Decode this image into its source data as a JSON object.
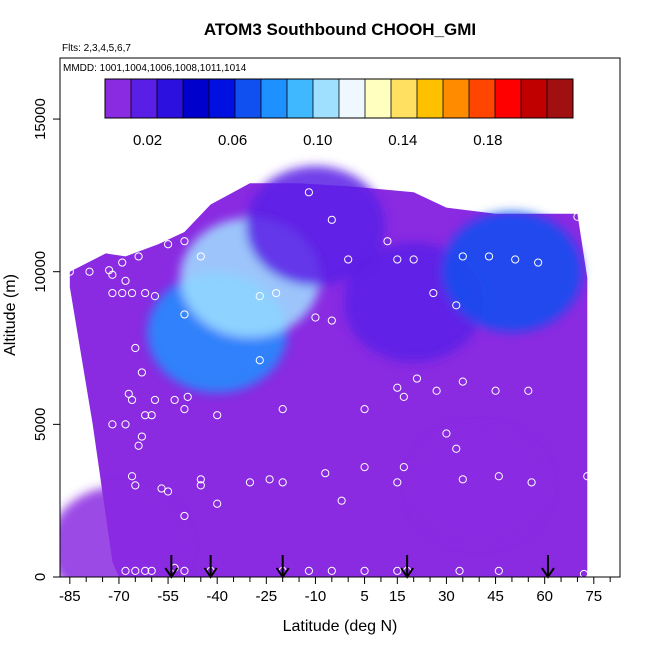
{
  "chart_data": {
    "type": "heatmap",
    "title": "ATOM3 Southbound CHOOH_GMI",
    "subtitle_flights": "Flts: 2,3,4,5,6,7",
    "subtitle_dates": "MMDD: 1001,1004,1006,1008,1011,1014",
    "xlabel": "Latitude (deg N)",
    "ylabel": "Altitude (m)",
    "xlim": [
      -88,
      83
    ],
    "ylim": [
      0,
      17000
    ],
    "x_ticks": [
      -85,
      -70,
      -55,
      -40,
      -25,
      -10,
      5,
      15,
      30,
      45,
      60,
      75
    ],
    "x_tick_labels": [
      "-85",
      "-70",
      "-55",
      "-40",
      "-25",
      "-10",
      "5",
      "15",
      "30",
      "45",
      "60",
      "75"
    ],
    "x_minor_ticks": [
      -80,
      -75,
      -65,
      -60,
      -50,
      -45,
      -35,
      -30,
      -20,
      -15,
      -5,
      0,
      10,
      20,
      25,
      35,
      40,
      50,
      55,
      65,
      70,
      80
    ],
    "y_ticks": [
      0,
      5000,
      10000,
      15000
    ],
    "y_tick_labels": [
      "0",
      "5000",
      "10000",
      "15000"
    ],
    "grid": false,
    "colorbar": {
      "placement": "top",
      "range": [
        0.0,
        0.22
      ],
      "ticks": [
        0.02,
        0.06,
        0.1,
        0.14,
        0.18
      ],
      "tick_labels": [
        "0.02",
        "0.06",
        "0.10",
        "0.14",
        "0.18"
      ],
      "colors": [
        "#8a2be2",
        "#5a1fe6",
        "#2b10e0",
        "#0000cd",
        "#0010e0",
        "#1050f0",
        "#1e90ff",
        "#40b8ff",
        "#a0e0ff",
        "#f0f8ff",
        "#ffffc0",
        "#ffe060",
        "#ffc000",
        "#ff8c00",
        "#ff4500",
        "#ff0000",
        "#c00000",
        "#a01010"
      ]
    },
    "heatmap_cells": [
      {
        "lat": -70,
        "alt": 1000,
        "value": 0.0
      },
      {
        "lat": -40,
        "alt": 8000,
        "value": 0.08
      },
      {
        "lat": -30,
        "alt": 9800,
        "value": 0.1
      },
      {
        "lat": -10,
        "alt": 11500,
        "value": 0.02
      },
      {
        "lat": 20,
        "alt": 9000,
        "value": 0.02
      },
      {
        "lat": 50,
        "alt": 10000,
        "value": 0.07
      },
      {
        "lat": 40,
        "alt": 3000,
        "value": 0.01
      }
    ],
    "profile_markers": [
      {
        "lat": -54,
        "label": "down"
      },
      {
        "lat": -42,
        "label": "down"
      },
      {
        "lat": -20,
        "label": "down"
      },
      {
        "lat": 18,
        "label": "down"
      },
      {
        "lat": 61,
        "label": "down"
      }
    ],
    "sample_points": [
      {
        "x": -85,
        "y": 10000
      },
      {
        "x": -79,
        "y": 10000
      },
      {
        "x": -73,
        "y": 10050
      },
      {
        "x": -72,
        "y": 9900
      },
      {
        "x": -69,
        "y": 10300
      },
      {
        "x": -72,
        "y": 9300
      },
      {
        "x": -68,
        "y": 9700
      },
      {
        "x": -69,
        "y": 9300
      },
      {
        "x": -66,
        "y": 9300
      },
      {
        "x": -64,
        "y": 10500
      },
      {
        "x": -62,
        "y": 9300
      },
      {
        "x": -59,
        "y": 9200
      },
      {
        "x": -55,
        "y": 10900
      },
      {
        "x": -50,
        "y": 11000
      },
      {
        "x": -45,
        "y": 10500
      },
      {
        "x": -50,
        "y": 8600
      },
      {
        "x": -65,
        "y": 7500
      },
      {
        "x": -63,
        "y": 6700
      },
      {
        "x": -67,
        "y": 6000
      },
      {
        "x": -66,
        "y": 5800
      },
      {
        "x": -59,
        "y": 5800
      },
      {
        "x": -62,
        "y": 5300
      },
      {
        "x": -60,
        "y": 5300
      },
      {
        "x": -53,
        "y": 5800
      },
      {
        "x": -49,
        "y": 5900
      },
      {
        "x": -50,
        "y": 5500
      },
      {
        "x": -72,
        "y": 5000
      },
      {
        "x": -68,
        "y": 5000
      },
      {
        "x": -63,
        "y": 4600
      },
      {
        "x": -64,
        "y": 4300
      },
      {
        "x": -40,
        "y": 5300
      },
      {
        "x": -27,
        "y": 9200
      },
      {
        "x": -22,
        "y": 9300
      },
      {
        "x": -27,
        "y": 7100
      },
      {
        "x": -20,
        "y": 5500
      },
      {
        "x": -12,
        "y": 12600
      },
      {
        "x": -5,
        "y": 11700
      },
      {
        "x": 12,
        "y": 11000
      },
      {
        "x": 0,
        "y": 10400
      },
      {
        "x": 15,
        "y": 10400
      },
      {
        "x": 20,
        "y": 10400
      },
      {
        "x": -10,
        "y": 8500
      },
      {
        "x": -5,
        "y": 8400
      },
      {
        "x": 23,
        "y": 12600
      },
      {
        "x": 35,
        "y": 10500
      },
      {
        "x": 43,
        "y": 10500
      },
      {
        "x": 51,
        "y": 10400
      },
      {
        "x": 58,
        "y": 10300
      },
      {
        "x": 70,
        "y": 11800
      },
      {
        "x": 26,
        "y": 9300
      },
      {
        "x": 33,
        "y": 8900
      },
      {
        "x": 21,
        "y": 6500
      },
      {
        "x": 27,
        "y": 6100
      },
      {
        "x": 35,
        "y": 6400
      },
      {
        "x": 45,
        "y": 6100
      },
      {
        "x": 55,
        "y": 6100
      },
      {
        "x": 15,
        "y": 6200
      },
      {
        "x": 17,
        "y": 5900
      },
      {
        "x": 5,
        "y": 5500
      },
      {
        "x": 30,
        "y": 4700
      },
      {
        "x": 33,
        "y": 4200
      },
      {
        "x": 5,
        "y": 3600
      },
      {
        "x": 17,
        "y": 3600
      },
      {
        "x": 35,
        "y": 3200
      },
      {
        "x": 46,
        "y": 3300
      },
      {
        "x": 56,
        "y": 3100
      },
      {
        "x": 73,
        "y": 3300
      },
      {
        "x": -7,
        "y": 3400
      },
      {
        "x": -20,
        "y": 3100
      },
      {
        "x": -30,
        "y": 3100
      },
      {
        "x": -24,
        "y": 3200
      },
      {
        "x": -45,
        "y": 3200
      },
      {
        "x": -45,
        "y": 3000
      },
      {
        "x": -57,
        "y": 2900
      },
      {
        "x": -55,
        "y": 2800
      },
      {
        "x": -66,
        "y": 3300
      },
      {
        "x": -65,
        "y": 3000
      },
      {
        "x": -40,
        "y": 2400
      },
      {
        "x": -50,
        "y": 2000
      },
      {
        "x": -2,
        "y": 2500
      },
      {
        "x": 15,
        "y": 3100
      },
      {
        "x": -68,
        "y": 200
      },
      {
        "x": -65,
        "y": 200
      },
      {
        "x": -62,
        "y": 200
      },
      {
        "x": -60,
        "y": 200
      },
      {
        "x": -53,
        "y": 300
      },
      {
        "x": -50,
        "y": 200
      },
      {
        "x": -42,
        "y": 200
      },
      {
        "x": -20,
        "y": 200
      },
      {
        "x": -12,
        "y": 200
      },
      {
        "x": -5,
        "y": 200
      },
      {
        "x": 5,
        "y": 200
      },
      {
        "x": 15,
        "y": 200
      },
      {
        "x": 18,
        "y": 200
      },
      {
        "x": 34,
        "y": 200
      },
      {
        "x": 46,
        "y": 200
      },
      {
        "x": 72,
        "y": 100
      }
    ]
  }
}
